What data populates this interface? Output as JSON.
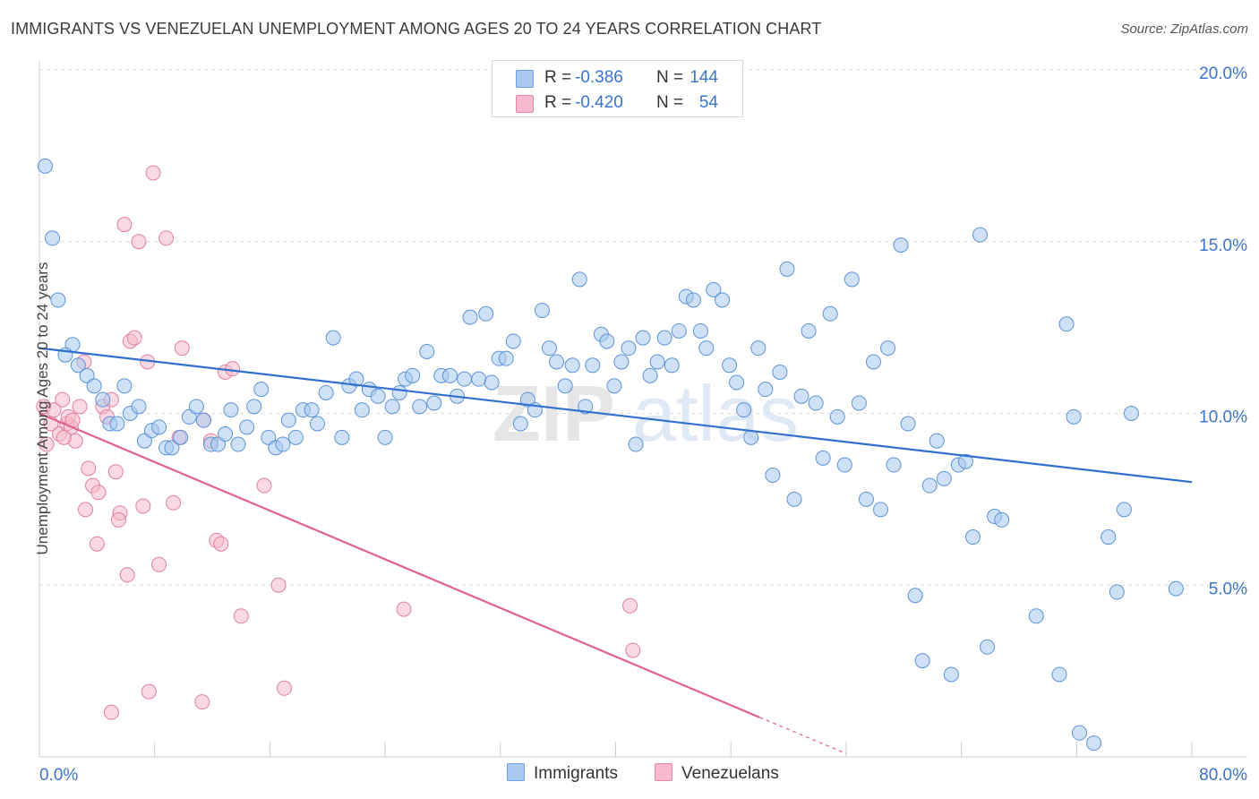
{
  "title": "IMMIGRANTS VS VENEZUELAN UNEMPLOYMENT AMONG AGES 20 TO 24 YEARS CORRELATION CHART",
  "source": "Source: ZipAtlas.com",
  "watermark": "ZIPatlas",
  "legend": {
    "rows": [
      {
        "r_label": "R =",
        "r_value": "-0.386",
        "n_label": "N =",
        "n_value": "144",
        "color": "#a8c8f0",
        "border": "#6f9fdc"
      },
      {
        "r_label": "R =",
        "r_value": "-0.420",
        "n_label": "N =",
        "n_value": "54",
        "color": "#f7b9cb",
        "border": "#e88aa7"
      }
    ]
  },
  "bottom_legend": {
    "immigrants": "Immigrants",
    "venezuelans": "Venezuelans"
  },
  "colors": {
    "immigrants_fill": "#a8c8f0",
    "immigrants_stroke": "#5b93d6",
    "immigrants_line": "#2f6fd0",
    "venezuelans_fill": "#f7b9cb",
    "venezuelans_stroke": "#e07f9f",
    "venezuelans_line": "#e0628c",
    "tick_label": "#3a74c9",
    "grid": "#dcdcdc"
  },
  "chart_data": {
    "type": "scatter",
    "title": "IMMIGRANTS VS VENEZUELAN UNEMPLOYMENT AMONG AGES 20 TO 24 YEARS CORRELATION CHART",
    "xlabel": "",
    "ylabel": "Unemployment Among Ages 20 to 24 years",
    "xlim": [
      0,
      80
    ],
    "ylim": [
      0,
      20
    ],
    "x_tick_labels": [
      {
        "value": 0,
        "label": "0.0%"
      },
      {
        "value": 80,
        "label": "80.0%"
      }
    ],
    "y_tick_labels": [
      {
        "value": 5,
        "label": "5.0%"
      },
      {
        "value": 10,
        "label": "10.0%"
      },
      {
        "value": 15,
        "label": "15.0%"
      },
      {
        "value": 20,
        "label": "20.0%"
      }
    ],
    "grid": "horizontal dashed",
    "legend_position": "top-center",
    "series": [
      {
        "name": "Immigrants",
        "points": [
          [
            0.4,
            17.2
          ],
          [
            0.9,
            15.1
          ],
          [
            1.3,
            13.3
          ],
          [
            2.3,
            12.0
          ],
          [
            1.8,
            11.7
          ],
          [
            2.7,
            11.4
          ],
          [
            3.3,
            11.1
          ],
          [
            3.8,
            10.8
          ],
          [
            4.4,
            10.4
          ],
          [
            4.9,
            9.7
          ],
          [
            5.4,
            9.7
          ],
          [
            5.9,
            10.8
          ],
          [
            6.3,
            10.0
          ],
          [
            6.9,
            10.2
          ],
          [
            7.3,
            9.2
          ],
          [
            7.8,
            9.5
          ],
          [
            8.3,
            9.6
          ],
          [
            8.8,
            9.0
          ],
          [
            9.2,
            9.0
          ],
          [
            9.8,
            9.3
          ],
          [
            10.4,
            9.9
          ],
          [
            10.9,
            10.2
          ],
          [
            11.4,
            9.8
          ],
          [
            11.9,
            9.1
          ],
          [
            12.4,
            9.1
          ],
          [
            12.9,
            9.4
          ],
          [
            13.3,
            10.1
          ],
          [
            13.8,
            9.1
          ],
          [
            14.4,
            9.6
          ],
          [
            14.9,
            10.2
          ],
          [
            15.4,
            10.7
          ],
          [
            15.9,
            9.3
          ],
          [
            16.4,
            9.0
          ],
          [
            16.9,
            9.1
          ],
          [
            17.3,
            9.8
          ],
          [
            17.8,
            9.3
          ],
          [
            18.3,
            10.1
          ],
          [
            18.9,
            10.1
          ],
          [
            19.3,
            9.7
          ],
          [
            19.9,
            10.6
          ],
          [
            20.4,
            12.2
          ],
          [
            21.0,
            9.3
          ],
          [
            21.5,
            10.8
          ],
          [
            22.0,
            11.0
          ],
          [
            22.4,
            10.1
          ],
          [
            22.9,
            10.7
          ],
          [
            23.5,
            10.5
          ],
          [
            24.0,
            9.3
          ],
          [
            24.5,
            10.2
          ],
          [
            25.0,
            10.6
          ],
          [
            25.4,
            11.0
          ],
          [
            25.9,
            11.1
          ],
          [
            26.4,
            10.2
          ],
          [
            26.9,
            11.8
          ],
          [
            27.4,
            10.3
          ],
          [
            27.9,
            11.1
          ],
          [
            28.5,
            11.1
          ],
          [
            29.0,
            10.5
          ],
          [
            29.5,
            11.0
          ],
          [
            29.9,
            12.8
          ],
          [
            30.5,
            11.0
          ],
          [
            31.0,
            12.9
          ],
          [
            31.4,
            10.9
          ],
          [
            31.9,
            11.6
          ],
          [
            32.4,
            11.6
          ],
          [
            32.9,
            12.1
          ],
          [
            33.4,
            9.7
          ],
          [
            33.9,
            10.4
          ],
          [
            34.4,
            10.1
          ],
          [
            34.9,
            13.0
          ],
          [
            35.4,
            11.9
          ],
          [
            35.9,
            11.5
          ],
          [
            36.5,
            10.8
          ],
          [
            37.0,
            11.4
          ],
          [
            37.5,
            13.9
          ],
          [
            37.9,
            10.2
          ],
          [
            38.4,
            11.4
          ],
          [
            39.0,
            12.3
          ],
          [
            39.4,
            12.1
          ],
          [
            39.9,
            10.8
          ],
          [
            40.4,
            11.5
          ],
          [
            40.9,
            11.9
          ],
          [
            41.4,
            9.1
          ],
          [
            41.9,
            12.2
          ],
          [
            42.4,
            11.1
          ],
          [
            42.9,
            11.5
          ],
          [
            43.4,
            12.2
          ],
          [
            43.9,
            11.4
          ],
          [
            44.4,
            12.4
          ],
          [
            44.9,
            13.4
          ],
          [
            45.4,
            13.3
          ],
          [
            45.9,
            12.4
          ],
          [
            46.3,
            11.9
          ],
          [
            46.8,
            13.6
          ],
          [
            47.4,
            13.3
          ],
          [
            47.9,
            11.4
          ],
          [
            48.4,
            10.9
          ],
          [
            48.9,
            10.1
          ],
          [
            49.4,
            9.3
          ],
          [
            49.9,
            11.9
          ],
          [
            50.4,
            10.7
          ],
          [
            50.9,
            8.2
          ],
          [
            51.4,
            11.2
          ],
          [
            51.9,
            14.2
          ],
          [
            52.4,
            7.5
          ],
          [
            52.9,
            10.5
          ],
          [
            53.4,
            12.4
          ],
          [
            53.9,
            10.3
          ],
          [
            54.4,
            8.7
          ],
          [
            54.9,
            12.9
          ],
          [
            55.4,
            9.9
          ],
          [
            55.9,
            8.5
          ],
          [
            56.4,
            13.9
          ],
          [
            56.9,
            10.3
          ],
          [
            57.4,
            7.5
          ],
          [
            57.9,
            11.5
          ],
          [
            58.4,
            7.2
          ],
          [
            58.9,
            11.9
          ],
          [
            59.3,
            8.5
          ],
          [
            59.8,
            14.9
          ],
          [
            60.3,
            9.7
          ],
          [
            60.8,
            4.7
          ],
          [
            61.3,
            2.8
          ],
          [
            61.8,
            7.9
          ],
          [
            62.3,
            9.2
          ],
          [
            62.8,
            8.1
          ],
          [
            63.3,
            2.4
          ],
          [
            63.8,
            8.5
          ],
          [
            64.3,
            8.6
          ],
          [
            64.8,
            6.4
          ],
          [
            65.3,
            15.2
          ],
          [
            65.8,
            3.2
          ],
          [
            66.3,
            7.0
          ],
          [
            66.8,
            6.9
          ],
          [
            69.2,
            4.1
          ],
          [
            70.8,
            2.4
          ],
          [
            71.3,
            12.6
          ],
          [
            71.8,
            9.9
          ],
          [
            72.2,
            0.7
          ],
          [
            73.2,
            0.4
          ],
          [
            74.2,
            6.4
          ],
          [
            74.8,
            4.8
          ],
          [
            75.3,
            7.2
          ],
          [
            75.8,
            10.0
          ],
          [
            78.9,
            4.9
          ]
        ]
      },
      {
        "name": "Venezuelans",
        "points": [
          [
            0.3,
            10.2
          ],
          [
            0.5,
            9.1
          ],
          [
            0.8,
            9.7
          ],
          [
            1.0,
            10.1
          ],
          [
            1.4,
            9.4
          ],
          [
            1.6,
            10.4
          ],
          [
            1.9,
            9.7
          ],
          [
            2.2,
            9.6
          ],
          [
            2.5,
            9.2
          ],
          [
            2.8,
            10.2
          ],
          [
            3.1,
            11.5
          ],
          [
            1.7,
            9.3
          ],
          [
            3.4,
            8.4
          ],
          [
            3.7,
            7.9
          ],
          [
            4.1,
            7.7
          ],
          [
            4.4,
            10.2
          ],
          [
            4.7,
            9.9
          ],
          [
            5.0,
            10.4
          ],
          [
            5.3,
            8.3
          ],
          [
            5.6,
            7.1
          ],
          [
            5.9,
            15.5
          ],
          [
            6.3,
            12.1
          ],
          [
            6.6,
            12.2
          ],
          [
            6.9,
            15.0
          ],
          [
            7.2,
            7.3
          ],
          [
            7.5,
            11.5
          ],
          [
            7.9,
            17.0
          ],
          [
            8.3,
            5.6
          ],
          [
            8.8,
            15.1
          ],
          [
            9.3,
            7.4
          ],
          [
            9.7,
            9.3
          ],
          [
            9.9,
            11.9
          ],
          [
            11.4,
            9.8
          ],
          [
            11.9,
            9.2
          ],
          [
            12.3,
            6.3
          ],
          [
            12.6,
            6.2
          ],
          [
            12.9,
            11.2
          ],
          [
            13.4,
            11.3
          ],
          [
            14.0,
            4.1
          ],
          [
            15.6,
            7.9
          ],
          [
            16.6,
            5.0
          ],
          [
            17.0,
            2.0
          ],
          [
            7.6,
            1.9
          ],
          [
            11.3,
            1.6
          ],
          [
            5.0,
            1.3
          ],
          [
            25.3,
            4.3
          ],
          [
            41.0,
            4.4
          ],
          [
            41.2,
            3.1
          ],
          [
            4.0,
            6.2
          ],
          [
            5.5,
            6.9
          ],
          [
            6.1,
            5.3
          ],
          [
            3.2,
            7.2
          ],
          [
            2.0,
            9.9
          ],
          [
            2.3,
            9.8
          ]
        ]
      }
    ],
    "trend_lines": [
      {
        "name": "Immigrants",
        "from": [
          0,
          11.9
        ],
        "to": [
          80,
          8.0
        ]
      },
      {
        "name": "Venezuelans",
        "from": [
          0,
          10.0
        ],
        "to": [
          50,
          1.15
        ],
        "dashed_extension_to": [
          56,
          0.1
        ]
      }
    ]
  }
}
